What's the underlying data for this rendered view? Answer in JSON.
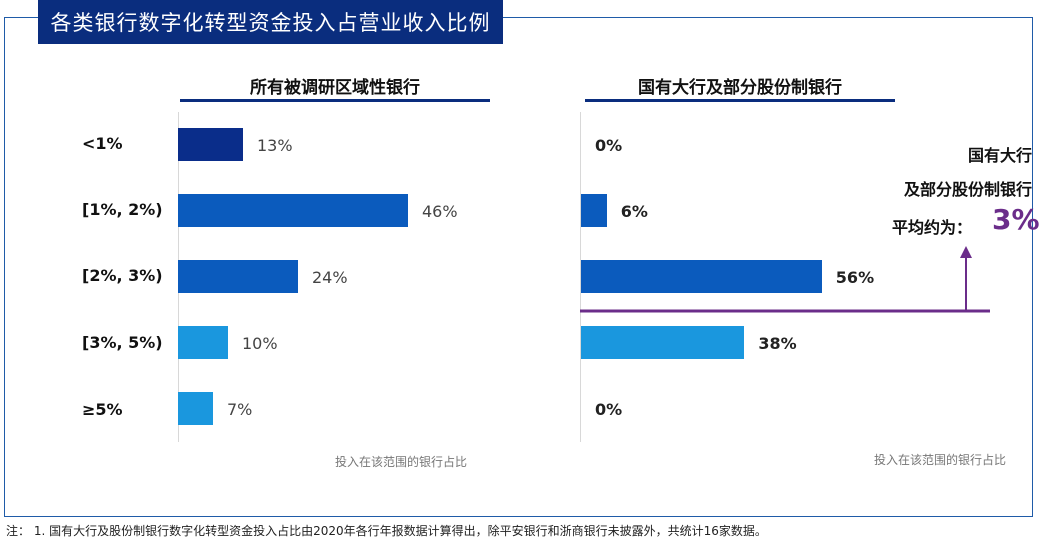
{
  "title": "各类银行数字化转型资金投入占营业收入比例",
  "note": "注：    1. 国有大行及股份制银行数字化转型资金投入占比由2020年各行年报数据计算得出，除平安银行和浙商银行未披露外，共统计16家数据。",
  "annotation": {
    "line1": "国有大行",
    "line2": "及部分股份制银行",
    "line3": "平均约为：",
    "value": "3%",
    "color": "#6b2d8a"
  },
  "colors": {
    "dark_navy": "#0a2d8a",
    "blue": "#0b5bbd",
    "light_blue": "#1a97de",
    "frame": "#1f5ba8"
  },
  "chart_data": [
    {
      "type": "bar",
      "orientation": "horizontal",
      "title": "所有被调研区域性银行",
      "categories": [
        "<1%",
        "[1%, 2%)",
        "[2%, 3%)",
        "[3%, 5%)",
        "≥5%"
      ],
      "values": [
        13,
        46,
        24,
        10,
        7
      ],
      "value_labels": [
        "13%",
        "46%",
        "24%",
        "10%",
        "7%"
      ],
      "xlabel": "投入在该范围的银行占比",
      "ylabel": "",
      "xlim": [
        0,
        65
      ],
      "grid": false
    },
    {
      "type": "bar",
      "orientation": "horizontal",
      "title": "国有大行及部分股份制银行",
      "categories": [
        "<1%",
        "[1%, 2%)",
        "[2%, 3%)",
        "[3%, 5%)",
        "≥5%"
      ],
      "values": [
        0,
        6,
        56,
        38,
        0
      ],
      "value_labels": [
        "0%",
        "6%",
        "56%",
        "38%",
        "0%"
      ],
      "xlabel": "投入在该范围的银行占比",
      "ylabel": "",
      "xlim": [
        0,
        65
      ],
      "grid": false
    }
  ]
}
